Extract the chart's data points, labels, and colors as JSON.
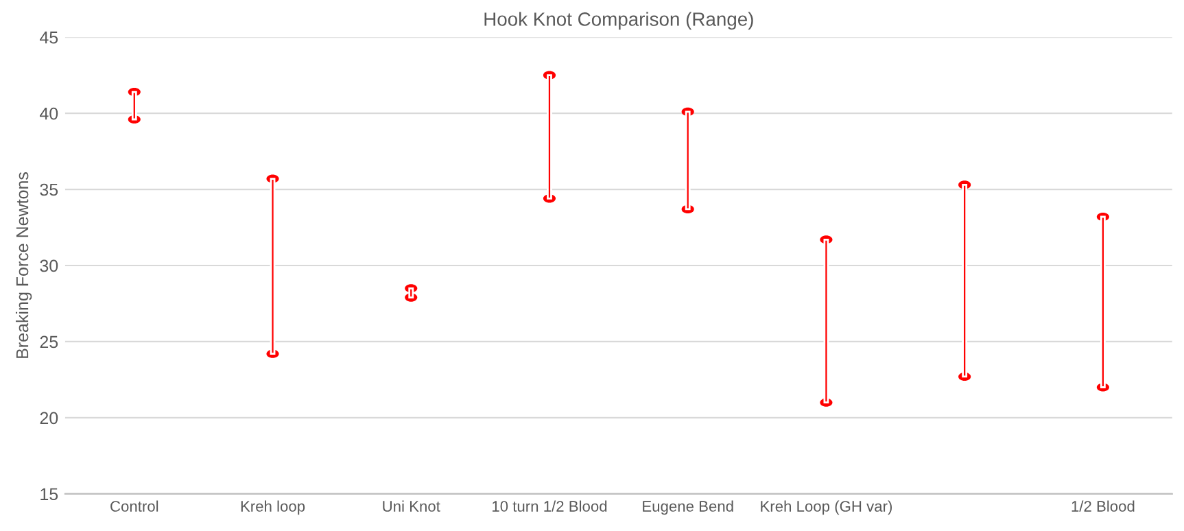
{
  "chart_data": {
    "type": "bar",
    "title": "Hook Knot Comparison (Range)",
    "ylabel": "Breaking Force Newtons",
    "categories": [
      "Control",
      "Kreh loop",
      "Uni Knot",
      "10 turn 1/2 Blood",
      "Eugene Bend",
      "Kreh Loop (GH var)",
      null,
      "1/2 Blood"
    ],
    "base": [
      39.6,
      24.2,
      27.9,
      34.4,
      33.7,
      21.0,
      22.7,
      22.0
    ],
    "values": [
      1.8,
      11.5,
      0.6,
      8.1,
      6.4,
      10.7,
      12.6,
      11.2
    ],
    "color": "#ff0000",
    "ylim": [
      15,
      45
    ],
    "yticks": [
      15,
      20,
      25,
      30,
      35,
      40,
      45
    ],
    "grid": "y"
  }
}
